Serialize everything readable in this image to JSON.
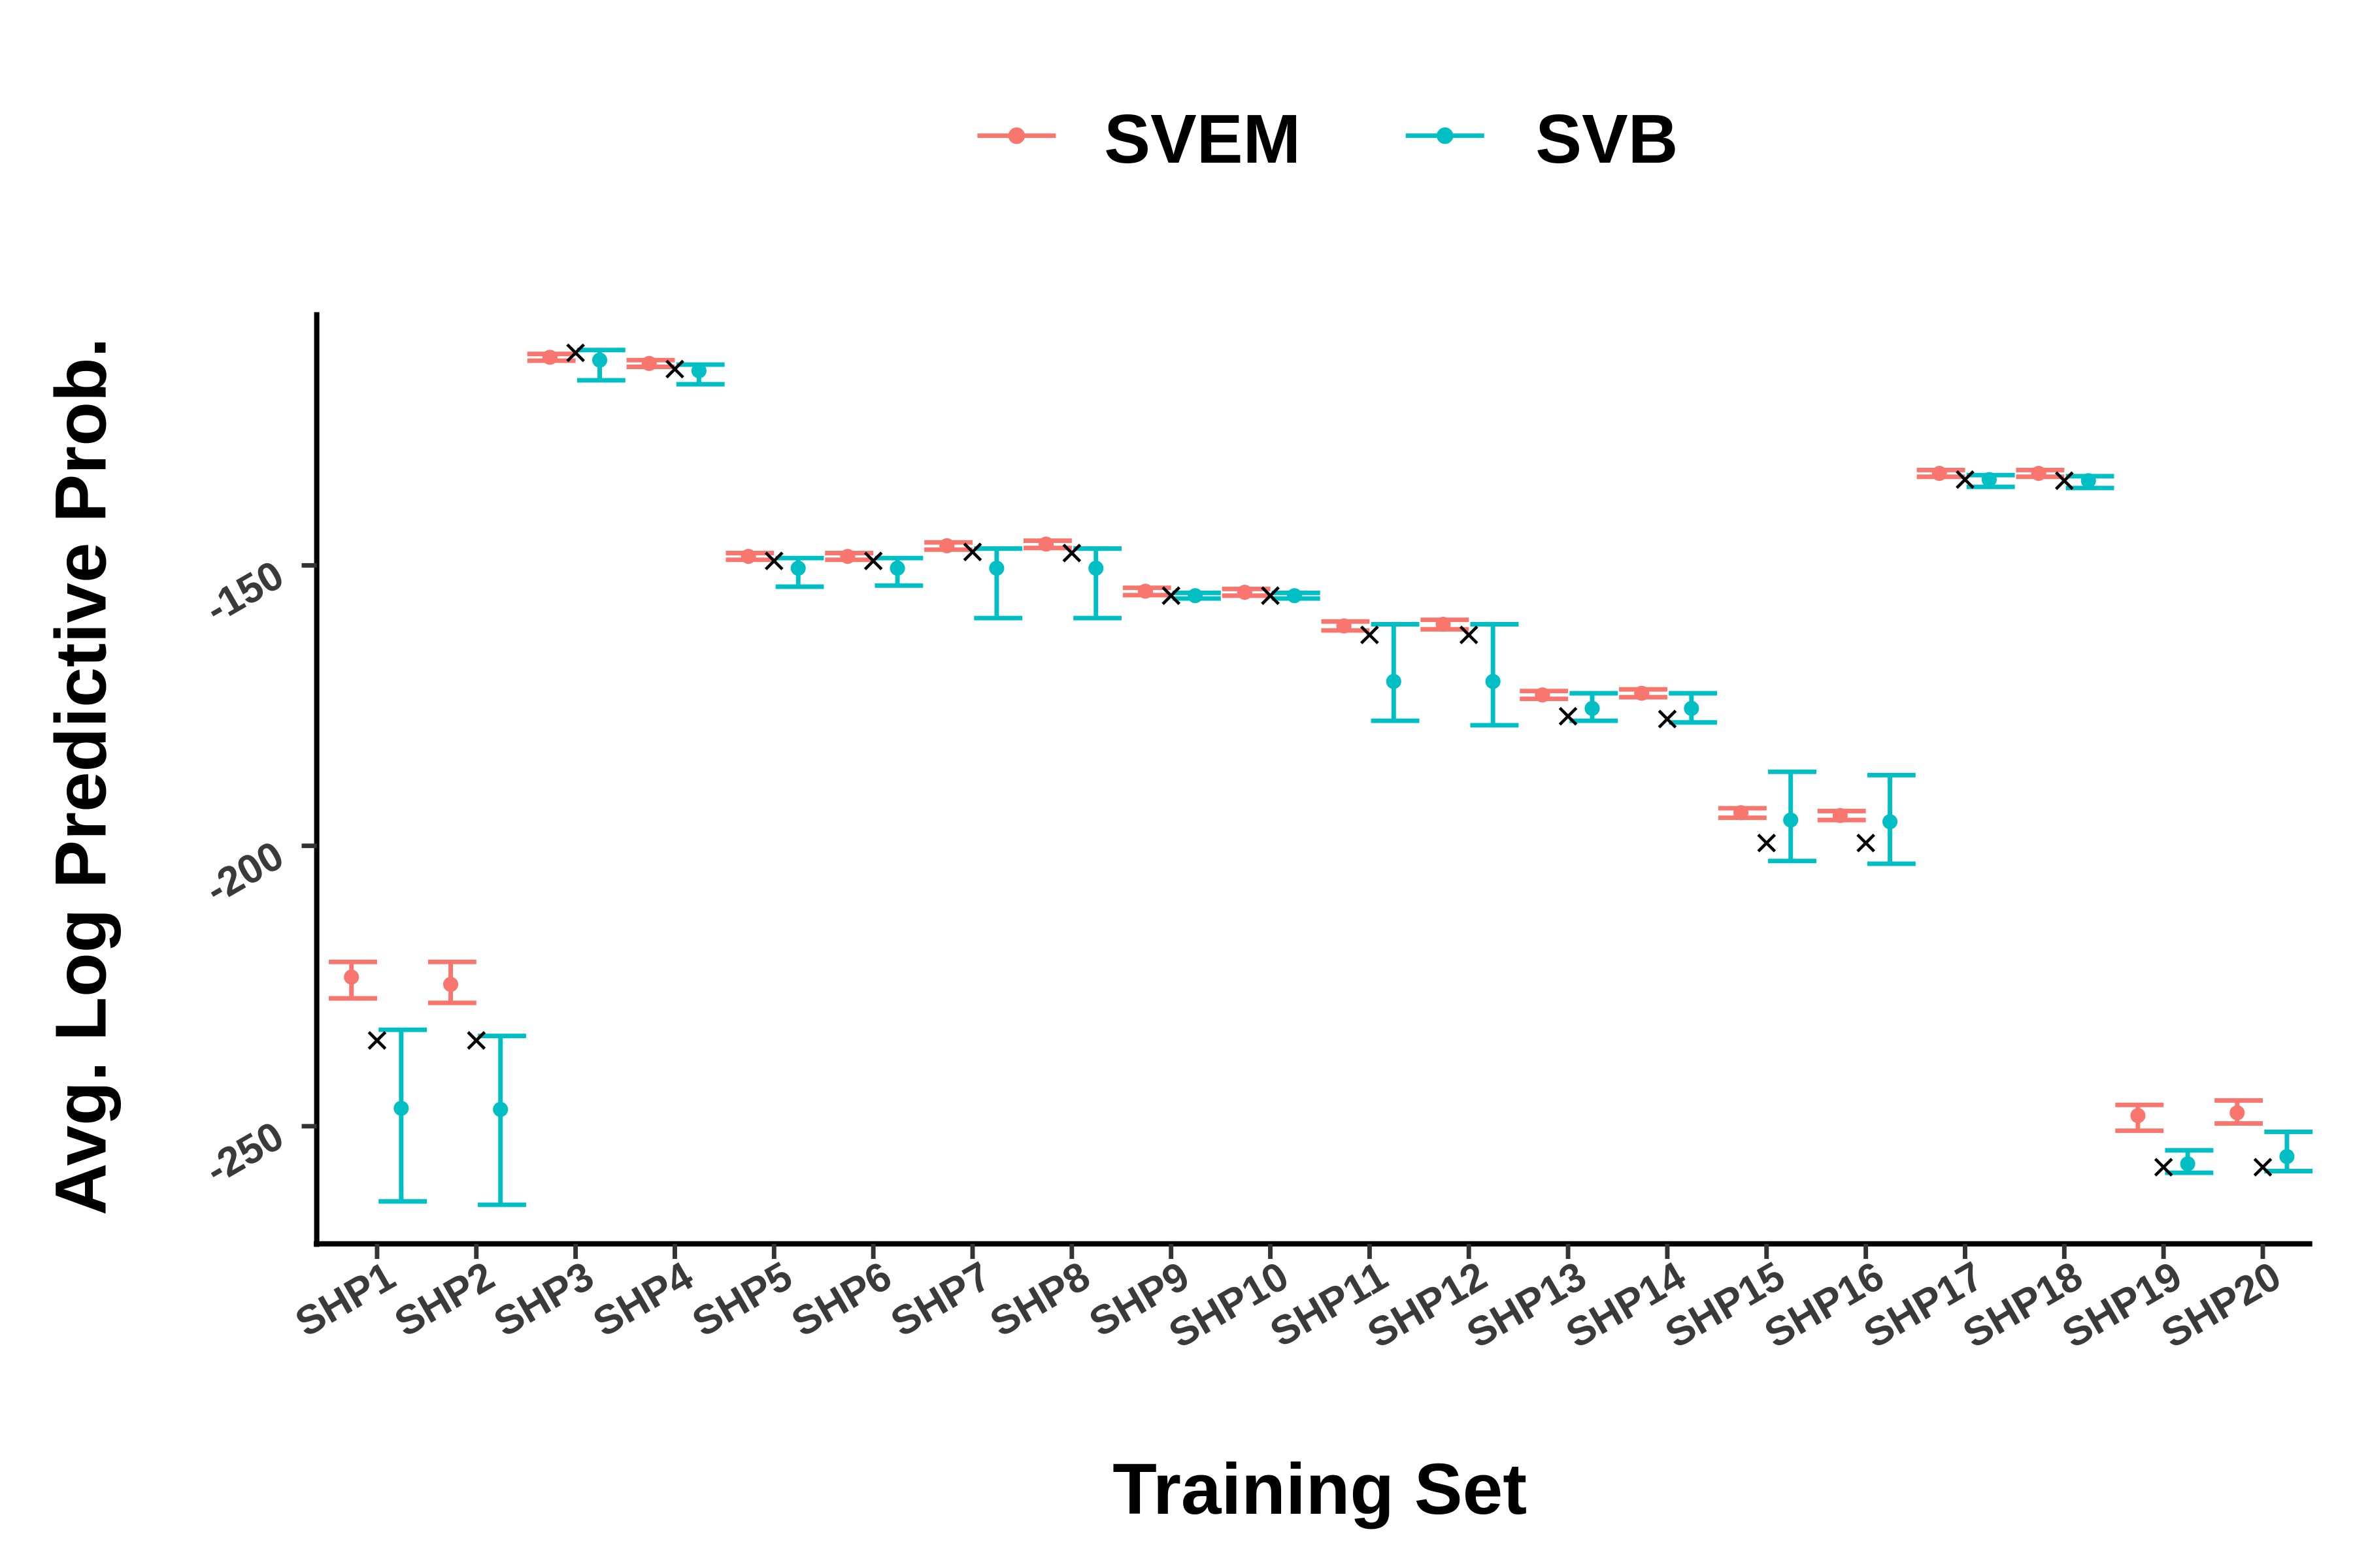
{
  "chart_data": {
    "type": "scatter",
    "subtype": "point-range with reference markers",
    "xlabel": "Training Set",
    "ylabel": "Avg. Log Predictive Prob.",
    "categories": [
      "SHP1",
      "SHP2",
      "SHP3",
      "SHP4",
      "SHP5",
      "SHP6",
      "SHP7",
      "SHP8",
      "SHP9",
      "SHP10",
      "SHP11",
      "SHP12",
      "SHP13",
      "SHP14",
      "SHP15",
      "SHP16",
      "SHP17",
      "SHP18",
      "SHP19",
      "SHP20"
    ],
    "yticks": [
      -150,
      -200,
      -250
    ],
    "ylim": [
      -271,
      -105
    ],
    "grid": false,
    "legend_position": "top",
    "series": [
      {
        "name": "SVEM",
        "color": "#F8766D",
        "mean": [
          -223.4,
          -224.7,
          -112.9,
          -114.0,
          -148.4,
          -148.4,
          -146.5,
          -146.2,
          -154.6,
          -154.8,
          -160.8,
          -160.5,
          -173.1,
          -172.8,
          -194.1,
          -194.6,
          -133.6,
          -133.6,
          -248.1,
          -247.6
        ],
        "min": [
          -227.2,
          -228.0,
          -113.5,
          -114.6,
          -149.0,
          -149.0,
          -147.2,
          -146.9,
          -155.3,
          -155.4,
          -161.6,
          -161.4,
          -173.8,
          -173.5,
          -195.0,
          -195.4,
          -134.2,
          -134.2,
          -250.8,
          -249.5
        ],
        "max": [
          -220.7,
          -220.7,
          -112.3,
          -113.4,
          -147.8,
          -147.8,
          -145.9,
          -145.6,
          -154.0,
          -154.2,
          -160.0,
          -159.7,
          -172.4,
          -172.1,
          -193.3,
          -193.8,
          -133.0,
          -133.0,
          -246.2,
          -245.4
        ]
      },
      {
        "name": "SVB",
        "color": "#00BFC4",
        "mean": [
          -246.8,
          -247.0,
          -113.4,
          -115.3,
          -150.5,
          -150.5,
          -150.5,
          -150.5,
          -155.4,
          -155.4,
          -170.7,
          -170.7,
          -175.5,
          -175.5,
          -195.4,
          -195.7,
          -134.7,
          -134.9,
          -256.7,
          -255.4
        ],
        "min": [
          -263.4,
          -264.0,
          -117.0,
          -117.7,
          -153.8,
          -153.6,
          -159.4,
          -159.4,
          -155.9,
          -155.9,
          -177.7,
          -178.5,
          -177.7,
          -178.0,
          -202.7,
          -203.2,
          -136.0,
          -136.2,
          -258.3,
          -258.0
        ],
        "max": [
          -232.8,
          -233.9,
          -111.6,
          -114.2,
          -148.7,
          -148.7,
          -147.0,
          -147.0,
          -154.9,
          -154.9,
          -160.5,
          -160.5,
          -172.8,
          -172.8,
          -186.8,
          -187.4,
          -133.9,
          -134.1,
          -254.3,
          -251.0
        ]
      }
    ],
    "reference": {
      "marker": "x",
      "color": "#000000",
      "values": [
        -234.7,
        -234.7,
        -112.1,
        -115.0,
        -149.2,
        -149.2,
        -147.6,
        -147.8,
        -155.4,
        -155.4,
        -162.4,
        -162.4,
        -176.9,
        -177.4,
        -199.5,
        -199.5,
        -134.7,
        -134.9,
        -257.3,
        -257.3
      ]
    }
  }
}
